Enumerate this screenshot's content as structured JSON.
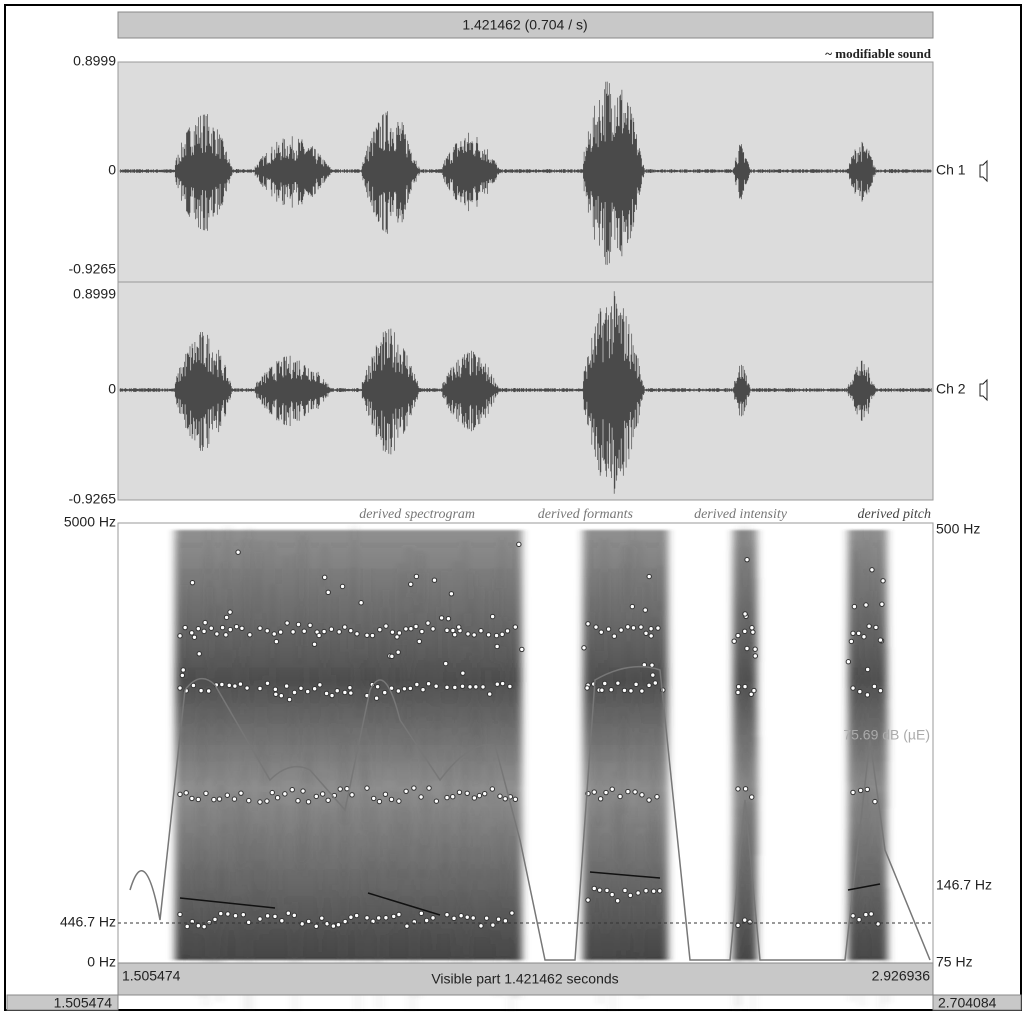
{
  "header": {
    "duration": "1.421462 (0.704 / s)",
    "sound_name": "~ modifiable sound"
  },
  "channels": [
    {
      "top": "0.8999",
      "zero": "0",
      "bottom": "-0.9265",
      "label": "Ch 1"
    },
    {
      "top": "0.8999",
      "zero": "0",
      "bottom": "-0.9265",
      "label": "Ch 2"
    }
  ],
  "legend": [
    "derived spectrogram",
    "derived formants",
    "derived intensity",
    "derived pitch"
  ],
  "spectrogram": {
    "top_freq": "5000 Hz",
    "cursor_freq": "446.7 Hz",
    "bottom_freq": "0 Hz",
    "pitch_top": "500 Hz",
    "pitch_mid": "146.7 Hz",
    "pitch_bottom": "75 Hz",
    "intensity": "75.69 dB (µE)"
  },
  "footer": {
    "start": "1.505474",
    "visible": "Visible part 1.421462 seconds",
    "end": "2.926936",
    "window_start": "1.505474",
    "window_end": "2.704084"
  }
}
